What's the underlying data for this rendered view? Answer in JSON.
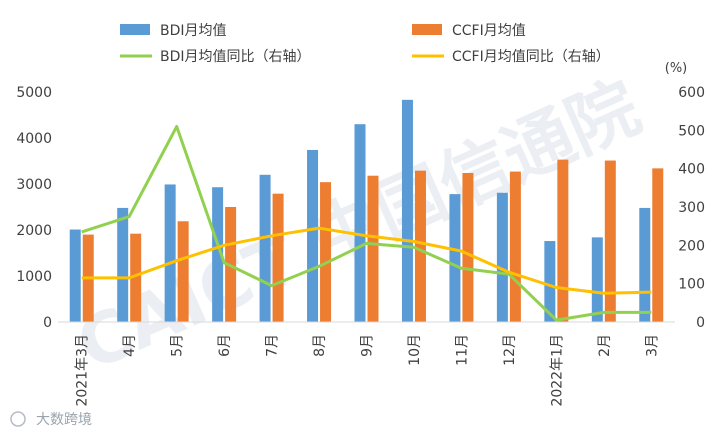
{
  "chart_data": {
    "type": "bar",
    "categories": [
      "2021年3月",
      "4月",
      "5月",
      "6月",
      "7月",
      "8月",
      "9月",
      "10月",
      "11月",
      "12月",
      "2022年1月",
      "2月",
      "3月"
    ],
    "series": [
      {
        "name": "BDI月均值",
        "type": "bar",
        "axis": "left",
        "color": "#5b9bd5",
        "values": [
          2010,
          2480,
          2990,
          2930,
          3200,
          3740,
          4300,
          4830,
          2780,
          2810,
          1760,
          1840,
          2480
        ]
      },
      {
        "name": "CCFI月均值",
        "type": "bar",
        "axis": "left",
        "color": "#ed7d31",
        "values": [
          1900,
          1920,
          2190,
          2500,
          2790,
          3040,
          3180,
          3290,
          3240,
          3270,
          3530,
          3510,
          3340
        ]
      },
      {
        "name": "BDI月均值同比（右轴）",
        "type": "line",
        "axis": "right",
        "color": "#92d050",
        "values": [
          235,
          275,
          510,
          155,
          95,
          145,
          205,
          195,
          140,
          125,
          5,
          25,
          25
        ]
      },
      {
        "name": "CCFI月均值同比（右轴）",
        "type": "line",
        "axis": "right",
        "color": "#ffc000",
        "values": [
          115,
          115,
          160,
          200,
          225,
          245,
          225,
          210,
          185,
          130,
          90,
          75,
          78
        ]
      }
    ],
    "left_axis": {
      "ylim": [
        0,
        5000
      ],
      "ticks": [
        "0",
        "1000",
        "2000",
        "3000",
        "4000",
        "5000"
      ]
    },
    "right_axis": {
      "ylim": [
        0,
        600
      ],
      "ticks": [
        "0",
        "100",
        "200",
        "300",
        "400",
        "500",
        "600"
      ],
      "unit": "(%)"
    },
    "legend": "top",
    "grid": false
  },
  "watermark": {
    "text": "CAICT 中国信通院",
    "source": "大数跨境"
  }
}
